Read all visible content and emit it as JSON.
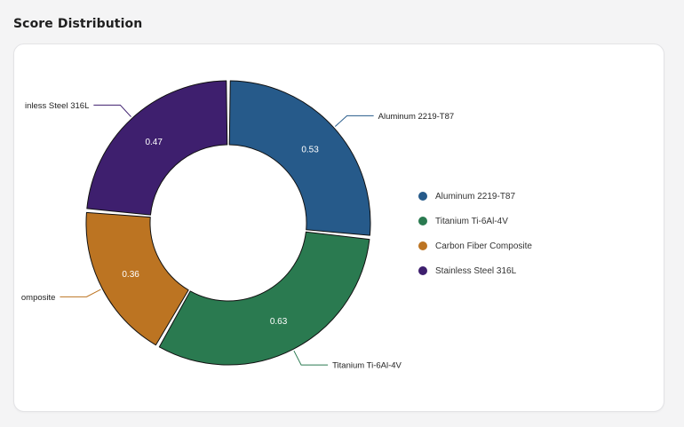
{
  "page": {
    "title": "Score Distribution"
  },
  "chart_data": {
    "type": "pie",
    "variant": "donut",
    "title": "",
    "legend_position": "right",
    "labels": [
      "Aluminum 2219-T87",
      "Titanium Ti-6Al-4V",
      "Carbon Fiber Composite",
      "Stainless Steel 316L"
    ],
    "values": [
      0.53,
      0.63,
      0.36,
      0.47
    ],
    "value_labels": [
      "0.53",
      "0.63",
      "0.36",
      "0.47"
    ],
    "colors": [
      "#265a8a",
      "#2a7a50",
      "#bc7422",
      "#3e1f6e"
    ],
    "callout_labels": [
      "Aluminum 2219-T87",
      "Titanium Ti-6Al-4V",
      "omposite",
      "inless Steel 316L"
    ]
  }
}
